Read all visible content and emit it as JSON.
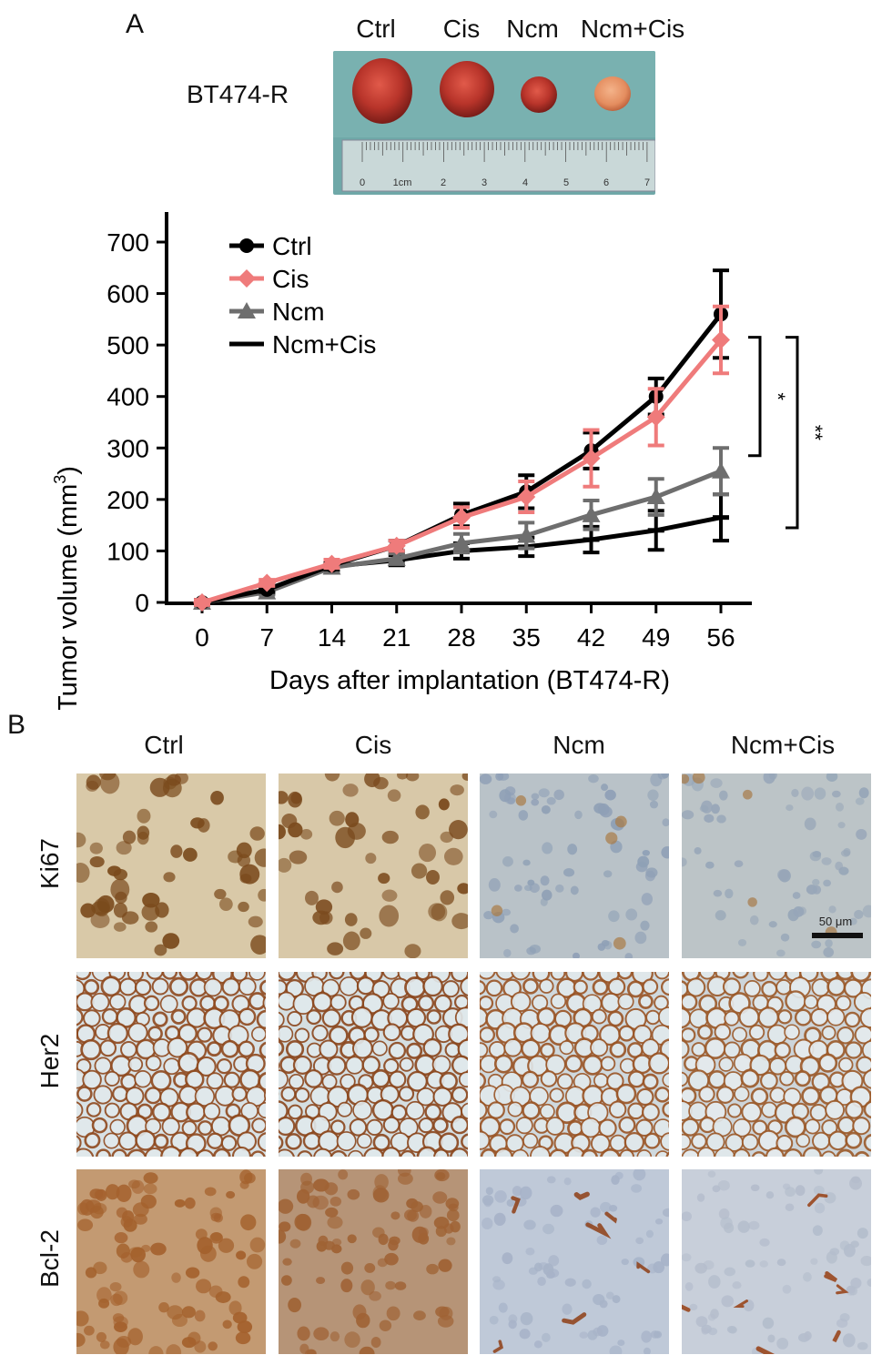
{
  "panel_a": {
    "letter": "A",
    "photo_groups": [
      "Ctrl",
      "Cis",
      "Ncm",
      "Ncm+Cis"
    ],
    "photo_row_label": "BT474-R",
    "ruler_labels": [
      "0",
      "1cm",
      "2",
      "3",
      "4",
      "5",
      "6",
      "7"
    ]
  },
  "chart_data": {
    "type": "line",
    "title": "",
    "xlabel": "Days after implantation (BT474-R)",
    "ylabel": "Tumor volume (mm³)",
    "ylabel_main": "Tumor volume (mm",
    "ylabel_sup": "3",
    "ylabel_close": ")",
    "x": [
      0,
      7,
      14,
      21,
      28,
      35,
      42,
      49,
      56
    ],
    "xlim": [
      0,
      56
    ],
    "ylim": [
      0,
      700
    ],
    "yticks": [
      0,
      100,
      200,
      300,
      400,
      500,
      600,
      700
    ],
    "grid": false,
    "legend_position": "top-left",
    "series": [
      {
        "name": "Ctrl",
        "color": "#000000",
        "marker": "circle",
        "values": [
          0,
          25,
          72,
          110,
          170,
          215,
          295,
          400,
          560
        ],
        "errors": [
          5,
          5,
          8,
          10,
          22,
          32,
          35,
          35,
          85
        ]
      },
      {
        "name": "Cis",
        "color": "#ef7b7b",
        "marker": "diamond",
        "values": [
          0,
          38,
          75,
          110,
          165,
          205,
          280,
          360,
          510
        ],
        "errors": [
          5,
          6,
          8,
          10,
          20,
          30,
          55,
          55,
          65
        ]
      },
      {
        "name": "Ncm",
        "color": "#6e6e6e",
        "marker": "triangle",
        "values": [
          0,
          20,
          68,
          85,
          115,
          130,
          170,
          205,
          255
        ],
        "errors": [
          5,
          5,
          8,
          10,
          18,
          25,
          28,
          35,
          45
        ]
      },
      {
        "name": "Ncm+Cis",
        "color": "#000000",
        "marker": "dash",
        "values": [
          0,
          22,
          70,
          82,
          100,
          108,
          122,
          140,
          165
        ],
        "errors": [
          5,
          5,
          8,
          10,
          15,
          18,
          25,
          38,
          45
        ]
      }
    ],
    "annotations": [
      {
        "text": "*",
        "y_range": [
          285,
          515
        ]
      },
      {
        "text": "**",
        "y_range": [
          145,
          515
        ]
      }
    ]
  },
  "panel_b": {
    "letter": "B",
    "columns": [
      "Ctrl",
      "Cis",
      "Ncm",
      "Ncm+Cis"
    ],
    "rows": [
      "Ki67",
      "Her2",
      "Bcl-2"
    ],
    "scale_bar": "50 μm"
  },
  "colors": {
    "photo_bg": "#6fa8a8",
    "tumor": "#c0392b",
    "tumor_pale": "#e7a07a",
    "stain_brown": "#8a5a2b",
    "tissue_blue": "#a9b9c9"
  }
}
